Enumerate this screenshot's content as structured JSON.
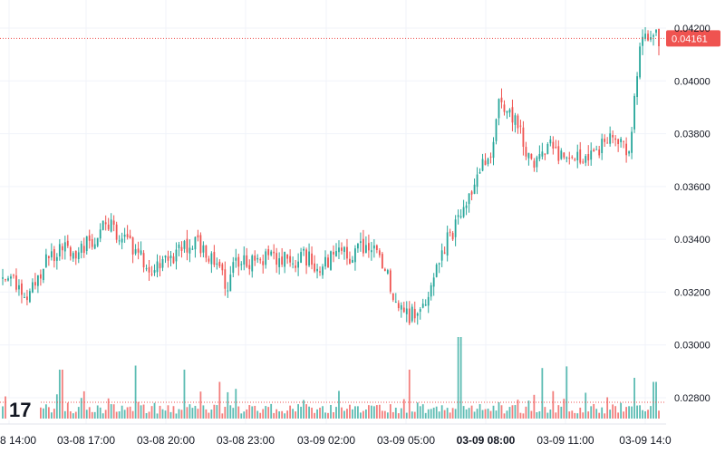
{
  "colors": {
    "up": "#26a69a",
    "down": "#ef5350",
    "grid": "#f0f3fa",
    "text": "#131722",
    "price_line": "#ef5350",
    "volume_avg_line": "#ef5350"
  },
  "logo": {
    "text": "17",
    "icon": "tradingview-logo-icon"
  },
  "chart_data": {
    "type": "candlestick",
    "y_axis": {
      "position": "right",
      "ylim": [
        0.0275,
        0.0425
      ],
      "ticks": [
        "0.04200",
        "0.04000",
        "0.03800",
        "0.03600",
        "0.03400",
        "0.03200",
        "0.03000",
        "0.02800"
      ],
      "tick_values": [
        0.042,
        0.04,
        0.038,
        0.036,
        0.034,
        0.032,
        0.03,
        0.028
      ]
    },
    "x_axis": {
      "ticks": [
        {
          "label": "8 14:00",
          "bold": false
        },
        {
          "label": "03-08 17:00",
          "bold": false
        },
        {
          "label": "03-08 20:00",
          "bold": false
        },
        {
          "label": "03-08 23:00",
          "bold": false
        },
        {
          "label": "03-09 02:00",
          "bold": false
        },
        {
          "label": "03-09 05:00",
          "bold": false
        },
        {
          "label": "03-09 08:00",
          "bold": true
        },
        {
          "label": "03-09 11:00",
          "bold": false
        },
        {
          "label": "03-09 14:0",
          "bold": false
        }
      ]
    },
    "last_price": {
      "value": 0.04161,
      "label": "0.04161"
    },
    "close_path": [
      [
        0,
        0.0325
      ],
      [
        2,
        0.0322
      ],
      [
        3,
        0.0318
      ],
      [
        5,
        0.033
      ],
      [
        7,
        0.0338
      ],
      [
        9,
        0.0336
      ],
      [
        11,
        0.0341
      ],
      [
        12,
        0.0346
      ],
      [
        13,
        0.0345
      ],
      [
        14,
        0.0342
      ],
      [
        15,
        0.0338
      ],
      [
        16,
        0.0336
      ],
      [
        17,
        0.0331
      ],
      [
        18,
        0.0328
      ],
      [
        19,
        0.0332
      ],
      [
        20,
        0.033
      ],
      [
        21,
        0.0334
      ],
      [
        22,
        0.0338
      ],
      [
        24,
        0.0337
      ],
      [
        25,
        0.0333
      ],
      [
        26,
        0.0328
      ],
      [
        27,
        0.0322
      ],
      [
        28,
        0.0332
      ],
      [
        30,
        0.0331
      ],
      [
        32,
        0.0334
      ],
      [
        34,
        0.0332
      ],
      [
        35,
        0.0331
      ],
      [
        36,
        0.0334
      ],
      [
        37,
        0.0332
      ],
      [
        38,
        0.0329
      ],
      [
        39,
        0.0331
      ],
      [
        40,
        0.0333
      ],
      [
        41,
        0.0335
      ],
      [
        42,
        0.0334
      ],
      [
        43,
        0.0336
      ],
      [
        44,
        0.0336
      ],
      [
        45,
        0.0334
      ],
      [
        46,
        0.033
      ],
      [
        47,
        0.0318
      ],
      [
        48,
        0.0314
      ],
      [
        49,
        0.0311
      ],
      [
        50,
        0.0313
      ],
      [
        51,
        0.0319
      ],
      [
        52,
        0.0328
      ],
      [
        53,
        0.0336
      ],
      [
        54,
        0.0342
      ],
      [
        55,
        0.0348
      ],
      [
        56,
        0.0356
      ],
      [
        57,
        0.0362
      ],
      [
        58,
        0.037
      ],
      [
        59,
        0.0376
      ],
      [
        59.5,
        0.039
      ],
      [
        60,
        0.0393
      ],
      [
        61,
        0.0386
      ],
      [
        62,
        0.0385
      ],
      [
        63,
        0.0372
      ],
      [
        64,
        0.0368
      ],
      [
        65,
        0.0372
      ],
      [
        66,
        0.0375
      ],
      [
        67,
        0.0371
      ],
      [
        68,
        0.0373
      ],
      [
        69,
        0.0372
      ],
      [
        70,
        0.037
      ],
      [
        71,
        0.0372
      ],
      [
        72,
        0.0376
      ],
      [
        73,
        0.0378
      ],
      [
        74,
        0.0376
      ],
      [
        75,
        0.0373
      ],
      [
        75.5,
        0.037
      ],
      [
        76,
        0.0395
      ],
      [
        76.5,
        0.0408
      ],
      [
        77,
        0.0414
      ],
      [
        77.5,
        0.0418
      ],
      [
        78,
        0.0418
      ],
      [
        78.5,
        0.042
      ],
      [
        79,
        0.0416
      ]
    ],
    "x_max": 79,
    "volume": {
      "avg_line": 0.2,
      "spikes": [
        [
          7,
          0.6
        ],
        [
          16,
          0.65
        ],
        [
          22,
          0.6
        ],
        [
          26,
          0.45
        ],
        [
          49,
          0.6
        ],
        [
          55,
          1.0
        ],
        [
          65,
          0.62
        ],
        [
          68,
          0.64
        ],
        [
          76,
          0.5
        ],
        [
          78.5,
          0.45
        ]
      ]
    }
  }
}
